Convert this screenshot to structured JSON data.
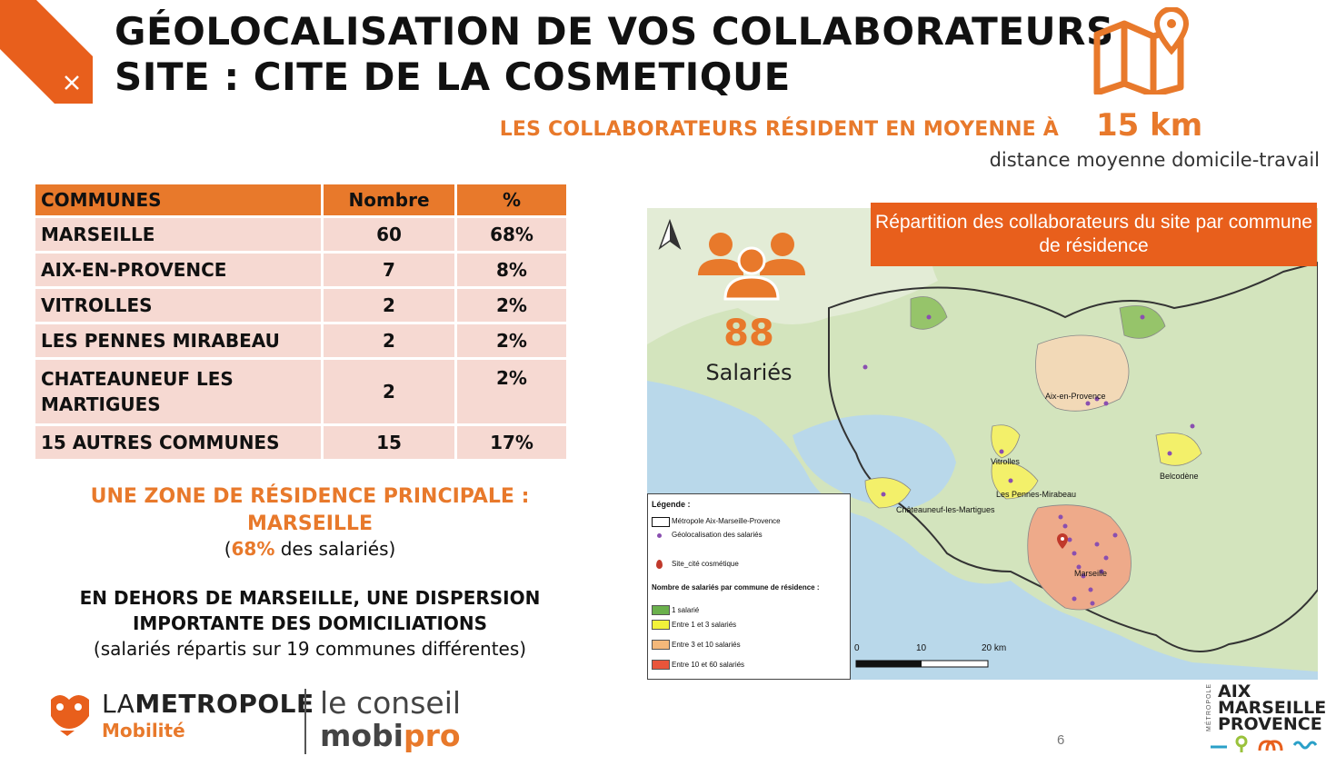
{
  "header": {
    "title_line1": "GÉOLOCALISATION DE VOS COLLABORATEURS",
    "title_line2": "SITE : CITE DE LA COSMETIQUE",
    "subtitle": "LES COLLABORATEURS RÉSIDENT EN MOYENNE À",
    "distance": "15 km",
    "distance_caption": "distance moyenne domicile-travail",
    "icon": "map-pin-icon"
  },
  "table": {
    "headers": [
      "COMMUNES",
      "Nombre",
      "%"
    ],
    "rows": [
      {
        "commune": "MARSEILLE",
        "nombre": "60",
        "pct": "68%"
      },
      {
        "commune": "AIX-EN-PROVENCE",
        "nombre": "7",
        "pct": "8%"
      },
      {
        "commune": "VITROLLES",
        "nombre": "2",
        "pct": "2%"
      },
      {
        "commune": "LES PENNES MIRABEAU",
        "nombre": "2",
        "pct": "2%"
      },
      {
        "commune": "CHATEAUNEUF LES MARTIGUES",
        "nombre": "2",
        "pct": "2%"
      },
      {
        "commune": "15 AUTRES COMMUNES",
        "nombre": "15",
        "pct": "17%"
      }
    ]
  },
  "summary": {
    "zone_title_1": "UNE ZONE DE RÉSIDENCE PRINCIPALE :",
    "zone_title_2": "MARSEILLE",
    "zone_sub_open": "(",
    "zone_sub_pct": "68%",
    "zone_sub_rest": " des salariés)",
    "dispersion_1": "EN DEHORS DE MARSEILLE, UNE DISPERSION",
    "dispersion_2": "IMPORTANTE DES DOMICILIATIONS",
    "dispersion_sub": "(salariés répartis sur 19 communes différentes)"
  },
  "map": {
    "banner": "Répartition des collaborateurs du site par commune de résidence",
    "employee_count": "88",
    "employee_label": "Salariés",
    "cities": {
      "aix": "Aix-en-Provence",
      "vitrolles": "Vitrolles",
      "pennes": "Les Pennes-Mirabeau",
      "chateauneuf": "Châteauneuf-les-Martigues",
      "marseille": "Marseille",
      "belcodene": "Belcodène"
    },
    "scale": {
      "s0": "0",
      "s10": "10",
      "s20": "20 km"
    },
    "legend": {
      "title": "Légende :",
      "metropole": "Métropole Aix-Marseille-Provence",
      "geoloc": "Géolocalisation des salariés",
      "site": "Site_cité cosmétique",
      "classes_title": "Nombre de salariés par commune de résidence :",
      "c1": "1 salarié",
      "c2": "Entre 1 et 3 salariés",
      "c3": "Entre 3 et 10 salariés",
      "c4": "Entre 10 et 60 salariés"
    },
    "colors": {
      "c1": "#6ab04c",
      "c2": "#f2f23a",
      "c3": "#f4b87a",
      "c4": "#e8553b",
      "accent": "#E8792B"
    }
  },
  "footer": {
    "metro_la": "LA",
    "metro_name": "METROPOLE",
    "metro_sub": "Mobilité",
    "conseil": "le conseil",
    "mobi": "mobi",
    "pro": "pro",
    "page": "6",
    "amp_vertical": "MÉTROPOLE",
    "amp_1": "AIX",
    "amp_2": "MARSEILLE",
    "amp_3": "PROVENCE"
  }
}
